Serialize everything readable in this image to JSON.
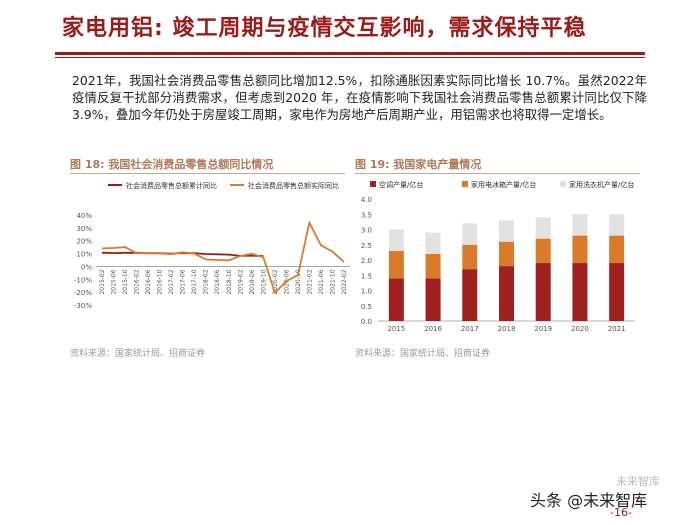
{
  "header": {
    "title": "家电用铝: 竣工周期与疫情交互影响，需求保持平稳"
  },
  "body": {
    "paragraph": "2021年，我国社会消费品零售总额同比增加12.5%，扣除通胀因素实际同比增长 10.7%。虽然2022年疫情反复干扰部分消费需求，但考虑到2020 年，在疫情影响下我国社会消费品零售总额累计同比仅下降 3.9%，叠加今年仍处于房屋竣工周期，家电作为房地产后周期产业，用铝需求也将取得一定增长。"
  },
  "figures": {
    "fig18": {
      "title": "图 18: 我国社会消费品零售总额同比情况",
      "source": "资料来源：国家统计局、招商证券"
    },
    "fig19": {
      "title": "图 19: 我国家电产量情况",
      "source": "资料来源：国家统计局、招商证券"
    }
  },
  "footer": {
    "brand": "头条 @未来智库",
    "watermark": "未来智库",
    "page": "-16-"
  },
  "chart_data": [
    {
      "type": "line",
      "title": "",
      "xlabel": "",
      "ylabel": "",
      "ylim": [
        -30,
        40
      ],
      "yticks": [
        "40%",
        "30%",
        "20%",
        "10%",
        "0%",
        "-10%",
        "-20%",
        "-30%"
      ],
      "x": [
        "2015-02",
        "2015-06",
        "2015-10",
        "2016-02",
        "2016-06",
        "2016-10",
        "2017-02",
        "2017-06",
        "2017-10",
        "2018-02",
        "2018-06",
        "2018-10",
        "2019-02",
        "2019-06",
        "2019-10",
        "2020-02",
        "2020-06",
        "2020-10",
        "2021-02",
        "2021-06",
        "2021-10",
        "2022-02"
      ],
      "legend": "top",
      "grid": false,
      "series": [
        {
          "name": "社会消费品零售总额累计同比",
          "color": "#9b1b1b",
          "values": [
            10.7,
            10.4,
            10.6,
            10.5,
            10.3,
            10.3,
            10.0,
            10.4,
            10.3,
            9.7,
            9.4,
            9.2,
            8.2,
            8.4,
            8.1,
            null,
            null,
            null,
            null,
            null,
            null,
            null
          ]
        },
        {
          "name": "社会消费品零售总额实际同比",
          "color": "#d97b2b",
          "values": [
            14,
            14.3,
            15,
            10.3,
            10.2,
            10.2,
            9.5,
            11,
            10.0,
            5.5,
            5,
            4.8,
            8.2,
            9.8,
            7.2,
            -20.5,
            -11.4,
            -6.9,
            34,
            16.4,
            11.5,
            3.5
          ]
        }
      ]
    },
    {
      "type": "bar",
      "stacked": true,
      "title": "",
      "xlabel": "",
      "ylabel": "",
      "ylim": [
        0,
        4
      ],
      "yticks": [
        "4.0",
        "3.5",
        "3.0",
        "2.5",
        "2.0",
        "1.5",
        "1.0",
        "0.5",
        "0.0"
      ],
      "categories": [
        "2015",
        "2016",
        "2017",
        "2018",
        "2019",
        "2020",
        "2021"
      ],
      "legend": "top",
      "grid": false,
      "series": [
        {
          "name": "空调产量/亿台",
          "color": "#a01f1f",
          "values": [
            1.4,
            1.4,
            1.7,
            1.8,
            1.9,
            1.9,
            1.9
          ]
        },
        {
          "name": "家用电冰箱产量/亿台",
          "color": "#d97b2b",
          "values": [
            0.9,
            0.8,
            0.8,
            0.8,
            0.8,
            0.9,
            0.9
          ]
        },
        {
          "name": "家用洗衣机产量/亿台",
          "color": "#e2e2e2",
          "values": [
            0.7,
            0.7,
            0.7,
            0.7,
            0.7,
            0.7,
            0.7
          ]
        }
      ]
    }
  ]
}
